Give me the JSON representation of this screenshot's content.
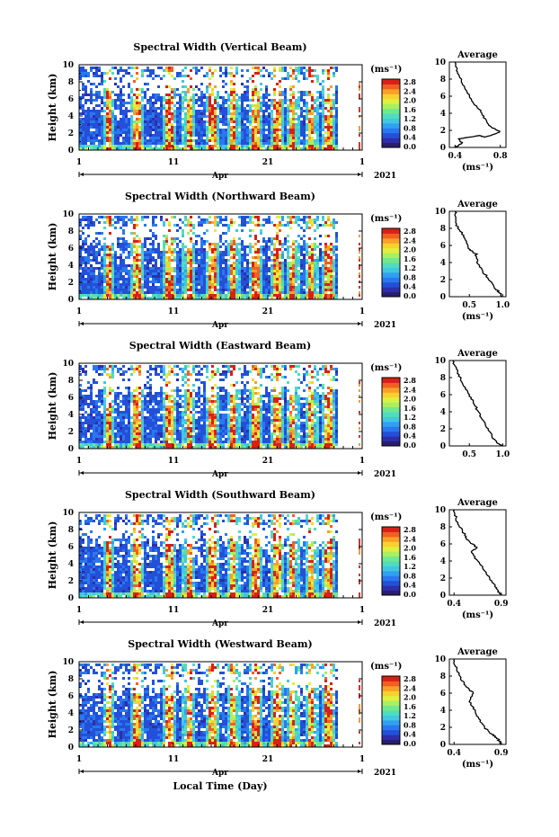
{
  "chart_data": [
    {
      "type": "heatmap",
      "title": "Spectral Width (Vertical Beam)",
      "ylabel": "Height (km)",
      "ylim": [
        0,
        10
      ],
      "yticks": [
        "0",
        "2",
        "4",
        "6",
        "8",
        "10"
      ],
      "xticks": [
        "1",
        "11",
        "21",
        "1"
      ],
      "month_label": "Apr",
      "year_label": "2021",
      "colorbar": {
        "unit": "(ms⁻¹)",
        "ticks": [
          "0.0",
          "0.4",
          "0.8",
          "1.2",
          "1.6",
          "2.0",
          "2.4",
          "2.8"
        ]
      },
      "average": {
        "title": "Average",
        "xlabel": "(ms⁻¹)",
        "xlim": [
          0.35,
          0.85
        ],
        "xticks": [
          "0.4",
          "0.8"
        ],
        "profile": [
          [
            0.4,
            0
          ],
          [
            0.46,
            0.5
          ],
          [
            0.44,
            1
          ],
          [
            0.62,
            1.4
          ],
          [
            0.66,
            1.2
          ],
          [
            0.8,
            1.8
          ],
          [
            0.72,
            2.4
          ],
          [
            0.68,
            3
          ],
          [
            0.64,
            4
          ],
          [
            0.58,
            5
          ],
          [
            0.53,
            6
          ],
          [
            0.49,
            7
          ],
          [
            0.45,
            8
          ],
          [
            0.42,
            9
          ],
          [
            0.4,
            10
          ]
        ]
      },
      "average_ticks": [
        "0",
        "2",
        "4",
        "6",
        "8",
        "10"
      ]
    },
    {
      "type": "heatmap",
      "title": "Spectral Width (Northward Beam)",
      "ylabel": "Height (km)",
      "ylim": [
        0,
        10
      ],
      "yticks": [
        "0",
        "2",
        "4",
        "6",
        "8",
        "10"
      ],
      "xticks": [
        "1",
        "11",
        "21",
        "1"
      ],
      "month_label": "Apr",
      "year_label": "2021",
      "colorbar": {
        "unit": "(ms⁻¹)",
        "ticks": [
          "0.0",
          "0.4",
          "0.8",
          "1.2",
          "1.6",
          "2.0",
          "2.4",
          "2.8"
        ]
      },
      "average": {
        "title": "Average",
        "xlabel": "(ms⁻¹)",
        "xlim": [
          0.2,
          1.05
        ],
        "xticks": [
          "0.5",
          "1.0"
        ],
        "profile": [
          [
            1.0,
            0
          ],
          [
            0.95,
            0.5
          ],
          [
            0.88,
            1
          ],
          [
            0.8,
            2
          ],
          [
            0.7,
            3
          ],
          [
            0.62,
            4
          ],
          [
            0.6,
            5
          ],
          [
            0.5,
            5.5
          ],
          [
            0.45,
            6.5
          ],
          [
            0.38,
            7.5
          ],
          [
            0.3,
            8.5
          ],
          [
            0.28,
            9.5
          ],
          [
            0.3,
            10
          ]
        ]
      },
      "average_ticks": [
        "0",
        "2",
        "4",
        "6",
        "8",
        "10"
      ]
    },
    {
      "type": "heatmap",
      "title": "Spectral Width (Eastward Beam)",
      "ylabel": "Height (km)",
      "ylim": [
        0,
        10
      ],
      "yticks": [
        "0",
        "2",
        "4",
        "6",
        "8",
        "10"
      ],
      "xticks": [
        "1",
        "11",
        "21",
        "1"
      ],
      "month_label": "Apr",
      "year_label": "2021",
      "colorbar": {
        "unit": "(ms⁻¹)",
        "ticks": [
          "0.0",
          "0.4",
          "0.8",
          "1.2",
          "1.6",
          "2.0",
          "2.4",
          "2.8"
        ]
      },
      "average": {
        "title": "Average",
        "xlabel": "",
        "xlim": [
          0.2,
          1.05
        ],
        "xticks": [
          "0.5",
          "1.0"
        ],
        "profile": [
          [
            1.0,
            0
          ],
          [
            0.92,
            0.3
          ],
          [
            0.85,
            1
          ],
          [
            0.78,
            2
          ],
          [
            0.7,
            3
          ],
          [
            0.63,
            4
          ],
          [
            0.57,
            5
          ],
          [
            0.5,
            6
          ],
          [
            0.42,
            7
          ],
          [
            0.36,
            8
          ],
          [
            0.3,
            9
          ],
          [
            0.25,
            10
          ]
        ]
      },
      "average_ticks": [
        "0",
        "2",
        "4",
        "6",
        "8",
        "10"
      ]
    },
    {
      "type": "heatmap",
      "title": "Spectral Width (Southward Beam)",
      "ylabel": "Height (km)",
      "ylim": [
        0,
        10
      ],
      "yticks": [
        "0",
        "2",
        "4",
        "6",
        "8",
        "10"
      ],
      "xticks": [
        "1",
        "11",
        "21",
        "1"
      ],
      "month_label": "Apr",
      "year_label": "2021",
      "colorbar": {
        "unit": "(ms⁻¹)",
        "ticks": [
          "0.0",
          "0.4",
          "0.8",
          "1.2",
          "1.6",
          "2.0",
          "2.4",
          "2.8"
        ]
      },
      "average": {
        "title": "Average",
        "xlabel": "(ms⁻¹)",
        "xlim": [
          0.35,
          0.95
        ],
        "xticks": [
          "0.4",
          "0.9"
        ],
        "profile": [
          [
            0.9,
            0
          ],
          [
            0.86,
            0.6
          ],
          [
            0.84,
            1
          ],
          [
            0.78,
            2
          ],
          [
            0.72,
            3
          ],
          [
            0.65,
            4
          ],
          [
            0.58,
            5
          ],
          [
            0.64,
            5.6
          ],
          [
            0.55,
            6.3
          ],
          [
            0.52,
            7
          ],
          [
            0.46,
            8
          ],
          [
            0.42,
            9
          ],
          [
            0.4,
            10
          ]
        ]
      },
      "average_ticks": [
        "0",
        "2",
        "4",
        "6",
        "8",
        "10"
      ]
    },
    {
      "type": "heatmap",
      "title": "Spectral Width (Westward Beam)",
      "ylabel": "Height (km)",
      "ylim": [
        0,
        10
      ],
      "yticks": [
        "0",
        "2",
        "4",
        "6",
        "8",
        "10"
      ],
      "xticks": [
        "1",
        "11",
        "21",
        "1"
      ],
      "month_label": "Apr",
      "year_label": "2021",
      "colorbar": {
        "unit": "(ms⁻¹)",
        "ticks": [
          "0.0",
          "0.4",
          "0.8",
          "1.2",
          "1.6",
          "2.0",
          "2.4",
          "2.8"
        ]
      },
      "average": {
        "title": "Average",
        "xlabel": "(ms⁻¹)",
        "xlim": [
          0.35,
          0.95
        ],
        "xticks": [
          "0.4",
          "0.9"
        ],
        "profile": [
          [
            0.9,
            0
          ],
          [
            0.86,
            0.7
          ],
          [
            0.8,
            1.2
          ],
          [
            0.72,
            2
          ],
          [
            0.66,
            3
          ],
          [
            0.62,
            4
          ],
          [
            0.56,
            5
          ],
          [
            0.6,
            6
          ],
          [
            0.54,
            6.6
          ],
          [
            0.48,
            7.5
          ],
          [
            0.44,
            8.5
          ],
          [
            0.4,
            9.5
          ],
          [
            0.4,
            10
          ]
        ]
      },
      "average_ticks": [
        "0",
        "2",
        "4",
        "6",
        "8",
        "10"
      ]
    }
  ],
  "figure": {
    "xlabel": "Local Time (Day)"
  },
  "colors": {
    "scale": [
      "#2a1d6e",
      "#2d2fa8",
      "#2450d8",
      "#2a78ee",
      "#30a0f0",
      "#40c8e0",
      "#50dcc0",
      "#70e890",
      "#a8f060",
      "#e0f040",
      "#f8d030",
      "#f8a028",
      "#f06020",
      "#d82018"
    ]
  }
}
